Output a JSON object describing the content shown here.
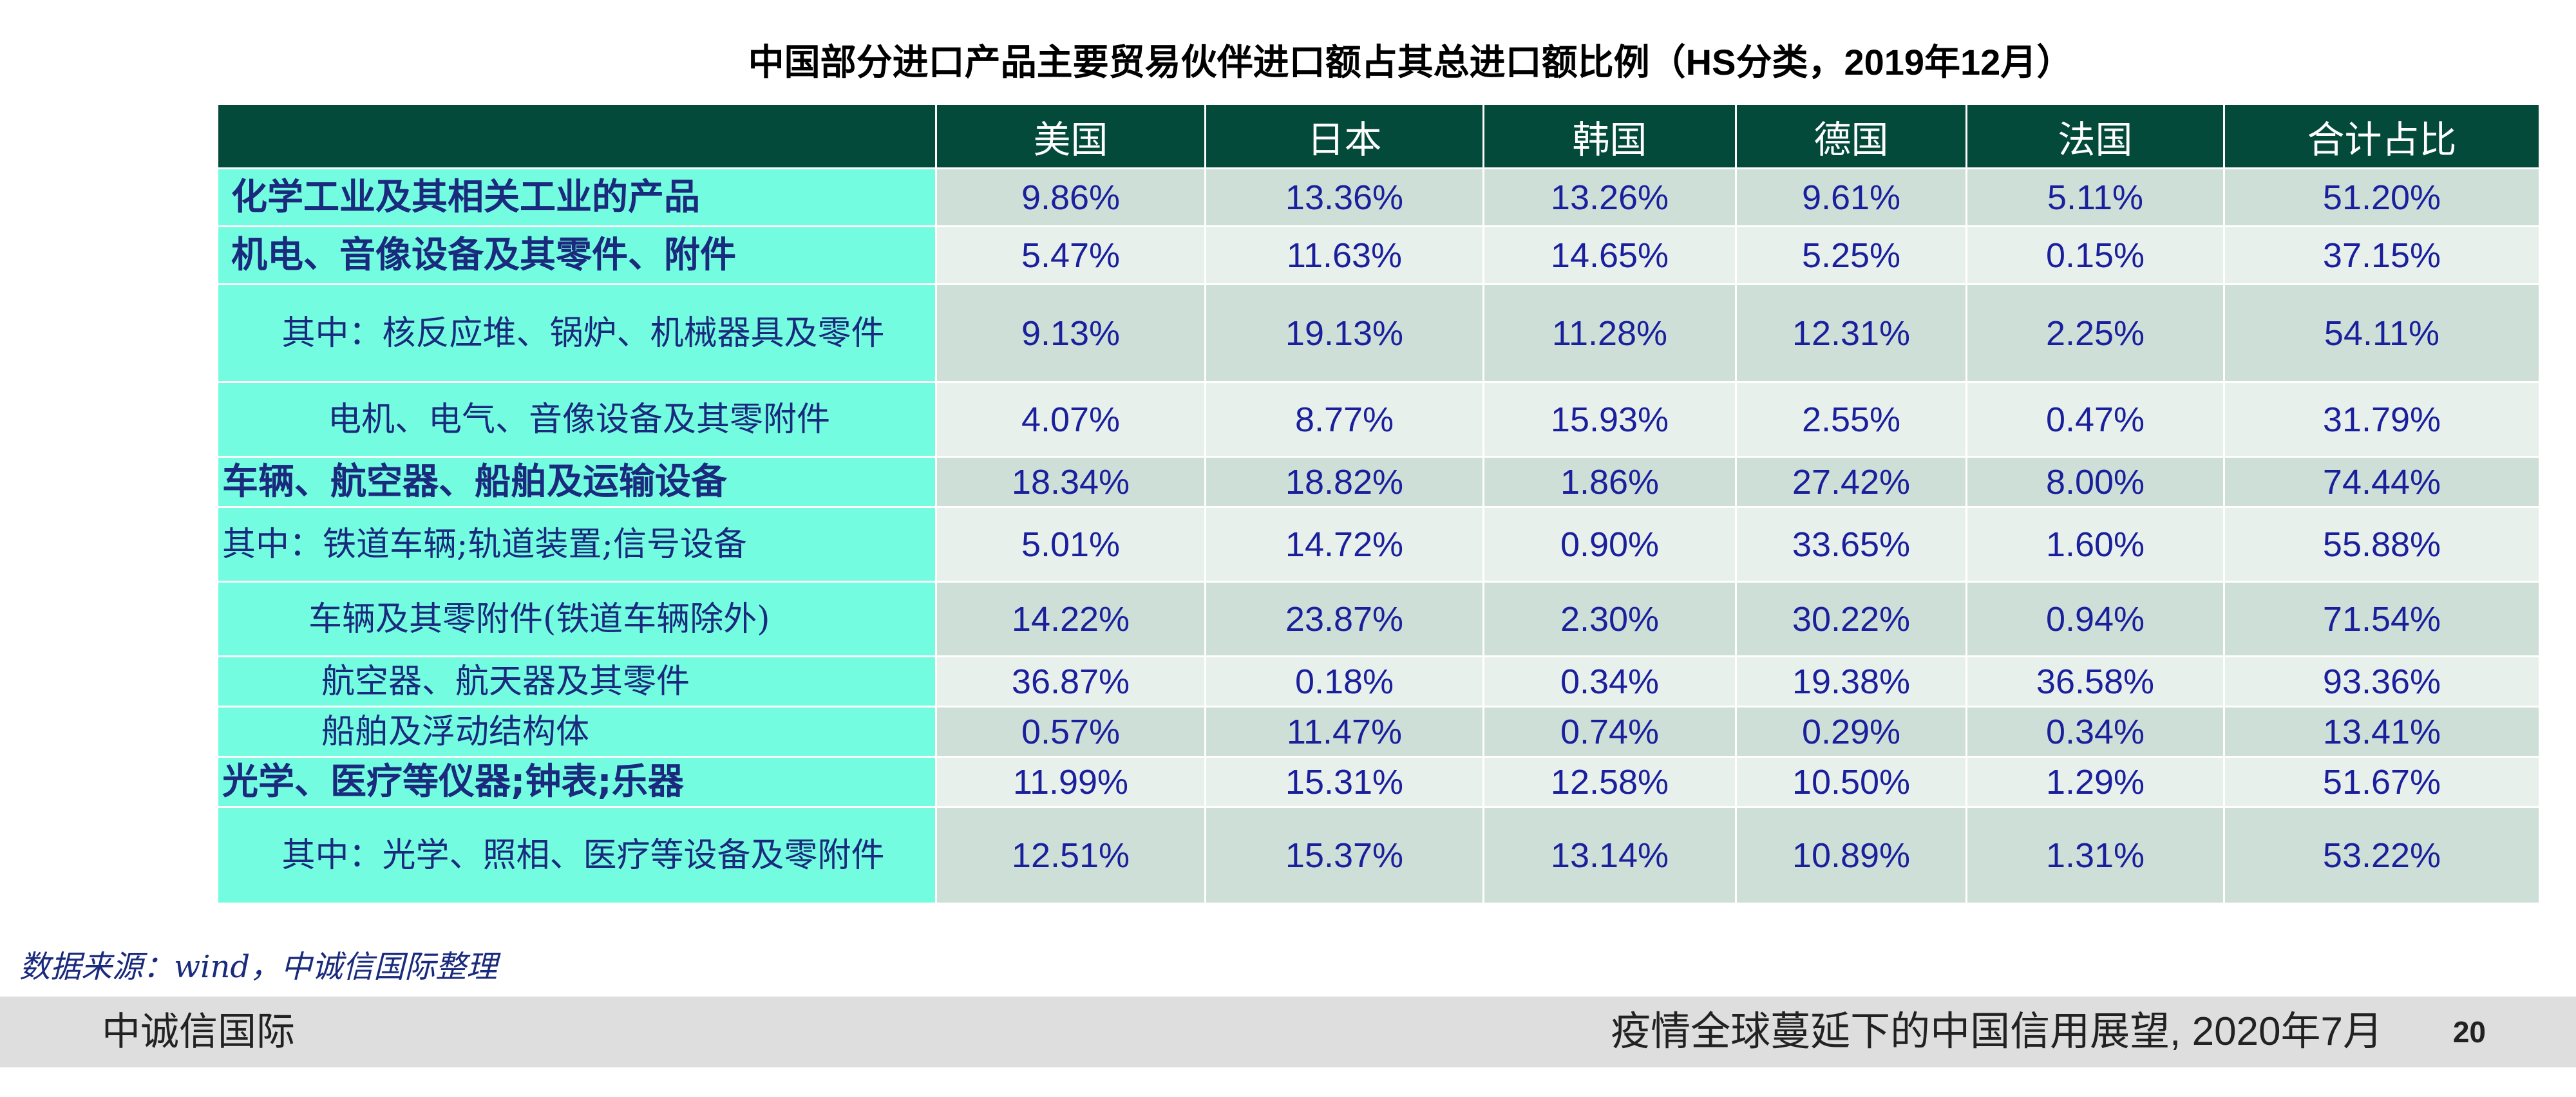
{
  "title": "中国部分进口产品主要贸易伙伴进口额占其总进口额比例（HS分类，2019年12月）",
  "table": {
    "headers": [
      "",
      "美国",
      "日本",
      "韩国",
      "德国",
      "法国",
      "合计占比"
    ],
    "rows": [
      {
        "label": "化学工业及其相关工业的产品",
        "values": [
          "9.86%",
          "13.36%",
          "13.26%",
          "9.61%",
          "5.11%",
          "51.20%"
        ]
      },
      {
        "label": "机电、音像设备及其零件、附件",
        "values": [
          "5.47%",
          "11.63%",
          "14.65%",
          "5.25%",
          "0.15%",
          "37.15%"
        ]
      },
      {
        "label": "其中：核反应堆、锅炉、机械器具及零件",
        "values": [
          "9.13%",
          "19.13%",
          "11.28%",
          "12.31%",
          "2.25%",
          "54.11%"
        ]
      },
      {
        "label": "电机、电气、音像设备及其零附件",
        "values": [
          "4.07%",
          "8.77%",
          "15.93%",
          "2.55%",
          "0.47%",
          "31.79%"
        ]
      },
      {
        "label": "车辆、航空器、船舶及运输设备",
        "values": [
          "18.34%",
          "18.82%",
          "1.86%",
          "27.42%",
          "8.00%",
          "74.44%"
        ]
      },
      {
        "label": "其中：铁道车辆;轨道装置;信号设备",
        "values": [
          "5.01%",
          "14.72%",
          "0.90%",
          "33.65%",
          "1.60%",
          "55.88%"
        ]
      },
      {
        "label": "车辆及其零附件(铁道车辆除外)",
        "values": [
          "14.22%",
          "23.87%",
          "2.30%",
          "30.22%",
          "0.94%",
          "71.54%"
        ]
      },
      {
        "label": "航空器、航天器及其零件",
        "values": [
          "36.87%",
          "0.18%",
          "0.34%",
          "19.38%",
          "36.58%",
          "93.36%"
        ]
      },
      {
        "label": "船舶及浮动结构体",
        "values": [
          "0.57%",
          "11.47%",
          "0.74%",
          "0.29%",
          "0.34%",
          "13.41%"
        ]
      },
      {
        "label": "光学、医疗等仪器;钟表;乐器",
        "values": [
          "11.99%",
          "15.31%",
          "12.58%",
          "10.50%",
          "1.29%",
          "51.67%"
        ]
      },
      {
        "label": "其中：光学、照相、医疗等设备及零附件",
        "values": [
          "12.51%",
          "15.37%",
          "13.14%",
          "10.89%",
          "1.31%",
          "53.22%"
        ]
      }
    ]
  },
  "source": "数据来源：wind，中诚信国际整理",
  "footer": {
    "left": "中诚信国际",
    "right": "疫情全球蔓延下的中国信用展望, 2020年7月",
    "page": "20"
  }
}
